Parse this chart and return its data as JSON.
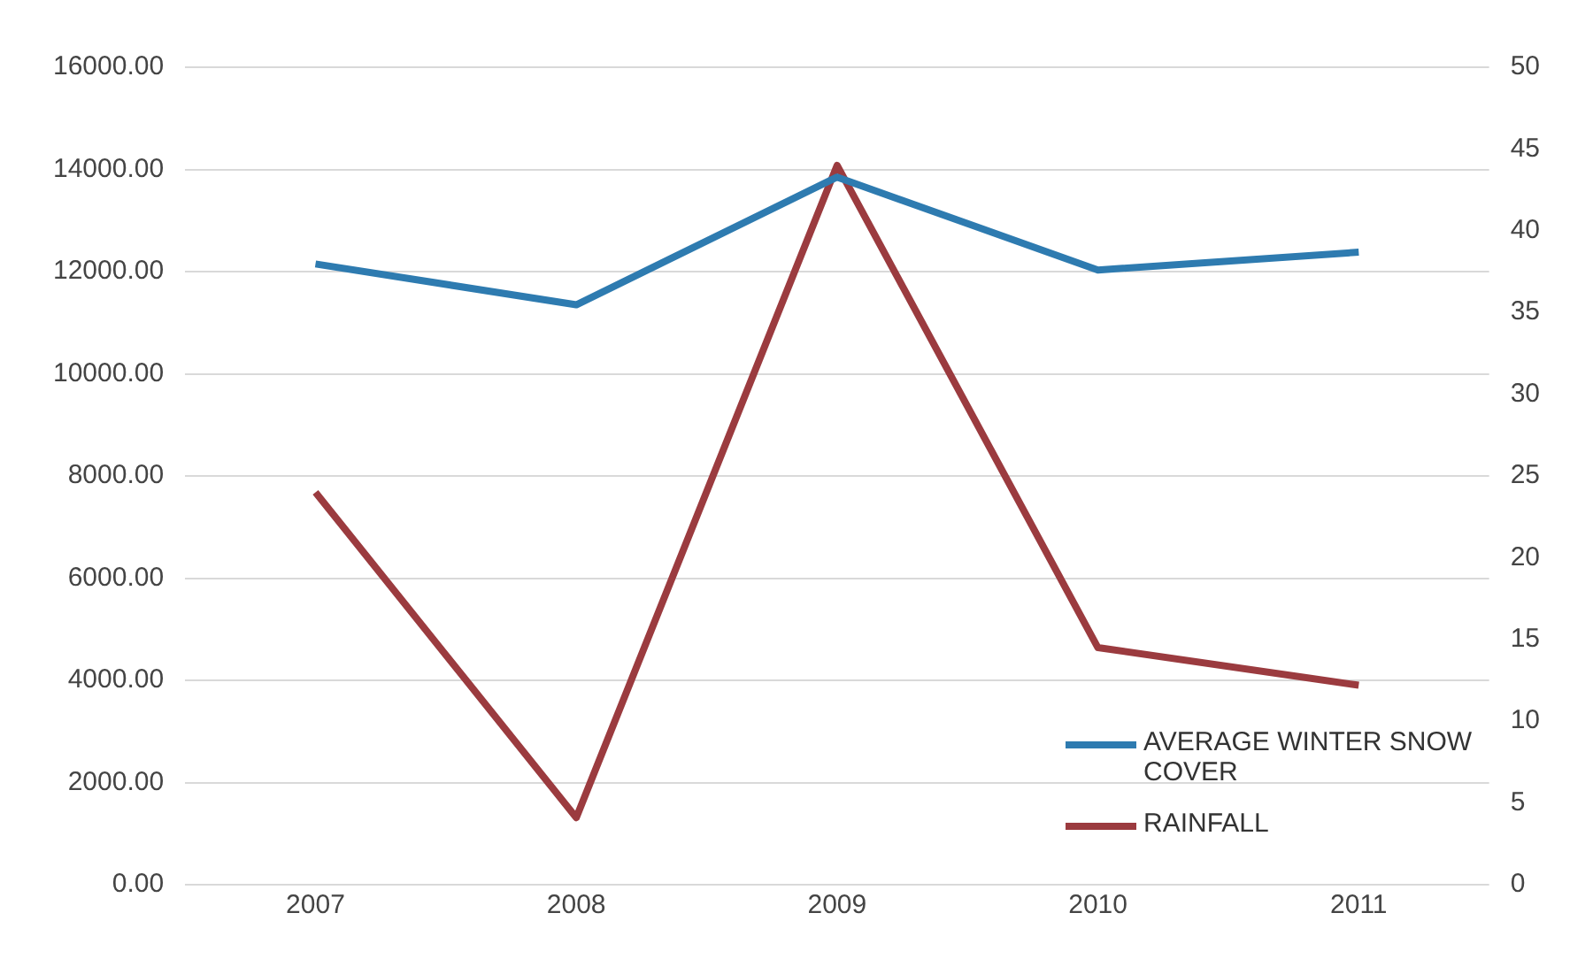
{
  "chart_data": {
    "type": "line",
    "categories": [
      "2007",
      "2008",
      "2009",
      "2010",
      "2011"
    ],
    "series": [
      {
        "name": "AVERAGE WINTER SNOW COVER",
        "color": "#2e7bb0",
        "values": [
          12150,
          11350,
          13850,
          12030,
          12380
        ]
      },
      {
        "name": "RAINFALL",
        "color": "#9b3b3f",
        "values": [
          24,
          4.1,
          44,
          14.5,
          12.2
        ],
        "axis": "y2"
      }
    ],
    "ylim": [
      0,
      16000
    ],
    "yticks": [
      {
        "value": 0,
        "label": "0.00"
      },
      {
        "value": 2000,
        "label": "2000.00"
      },
      {
        "value": 4000,
        "label": "4000.00"
      },
      {
        "value": 6000,
        "label": "6000.00"
      },
      {
        "value": 8000,
        "label": "8000.00"
      },
      {
        "value": 10000,
        "label": "10000.00"
      },
      {
        "value": 12000,
        "label": "12000.00"
      },
      {
        "value": 14000,
        "label": "14000.00"
      },
      {
        "value": 16000,
        "label": "16000.00"
      }
    ],
    "y2lim": [
      0,
      50
    ],
    "y2ticks": [
      0,
      5,
      10,
      15,
      20,
      25,
      30,
      35,
      40,
      45,
      50
    ],
    "grid": "y",
    "legend": "bottom right",
    "marker": "none",
    "line_style": "solid"
  }
}
